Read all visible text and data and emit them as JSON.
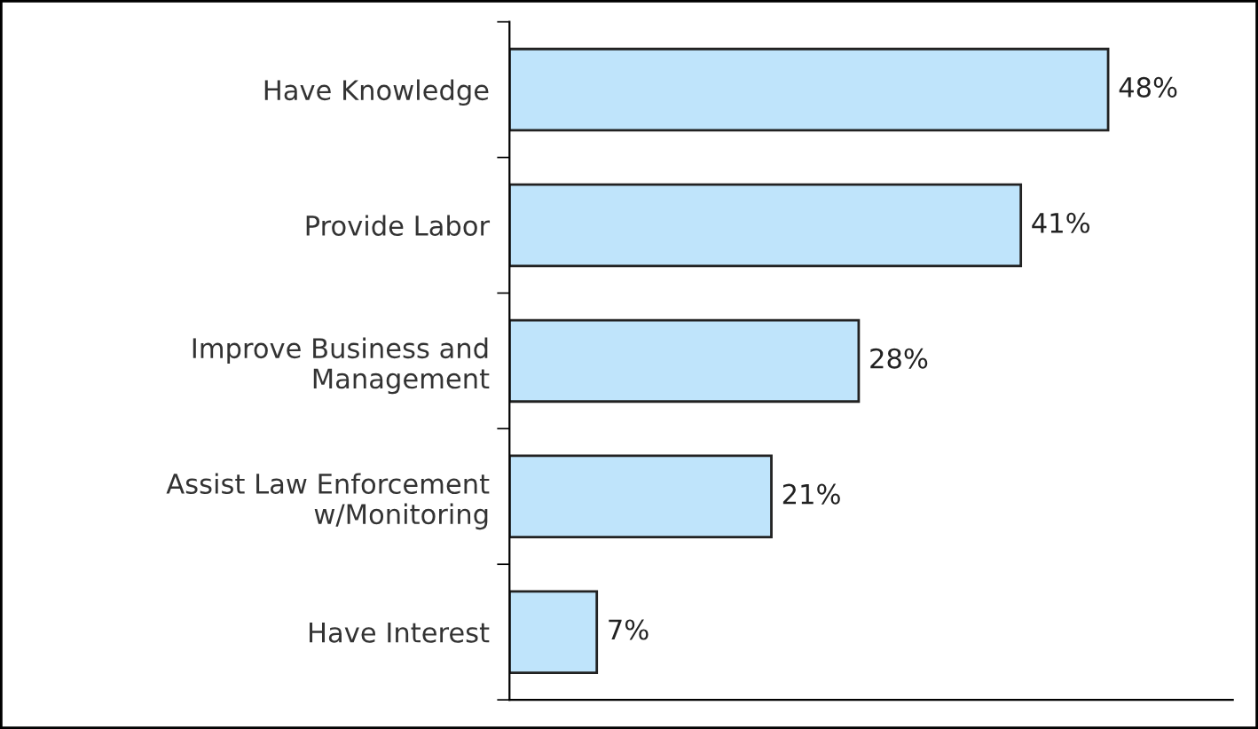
{
  "chart_data": {
    "type": "bar",
    "orientation": "horizontal",
    "categories": [
      "Have Knowledge",
      "Provide Labor",
      "Improve Business and\nManagement",
      "Assist Law Enforcement\nw/Monitoring",
      "Have Interest"
    ],
    "values": [
      48,
      41,
      28,
      21,
      7
    ],
    "value_labels": [
      "48%",
      "41%",
      "28%",
      "21%",
      "7%"
    ],
    "color": "#bfe4fb",
    "xlim": [
      0,
      58
    ],
    "tick_labels": "y",
    "grid": false,
    "legend": false
  }
}
